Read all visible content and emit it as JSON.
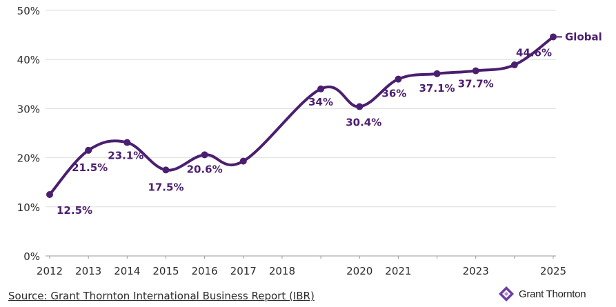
{
  "chart_data": {
    "type": "line",
    "x": [
      "2012",
      "2013",
      "2014",
      "2015",
      "2016",
      "2017",
      "2018",
      "2019",
      "2020",
      "2021",
      "2022",
      "2023",
      "2024",
      "2025"
    ],
    "y_tick_labels": [
      "0%",
      "10%",
      "20%",
      "30%",
      "40%",
      "50%"
    ],
    "x_tick_labels": [
      "2012",
      "2013",
      "2014",
      "2015",
      "2016",
      "2017",
      "2018",
      "",
      "2020",
      "2021",
      "",
      "2023",
      "",
      "2025"
    ],
    "ylim": [
      0,
      50
    ],
    "grid": true,
    "series": [
      {
        "name": "Global",
        "color": "#4b1f6f",
        "values": [
          12.5,
          21.5,
          23.1,
          17.5,
          20.6,
          19.3,
          null,
          34,
          30.4,
          36,
          37.1,
          37.7,
          38.9,
          44.6
        ],
        "labels": [
          "12.5%",
          "21.5%",
          "23.1%",
          "17.5%",
          "20.6%",
          "",
          "",
          "34%",
          "30.4%",
          "36%",
          "37.1%",
          "37.7%",
          "",
          "44.6%"
        ]
      }
    ]
  },
  "footer": {
    "source": "Source: Grant Thornton International Business Report (IBR)",
    "brand": "Grant Thornton",
    "brand_icon": "grant-thornton-logo-icon"
  }
}
